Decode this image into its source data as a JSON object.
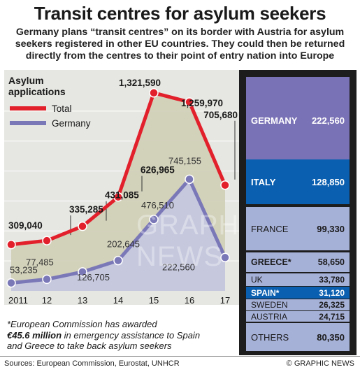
{
  "header": {
    "title": "Transit centres for asylum seekers",
    "subtitle": "Germany plans “transit centres” on its border with Austria for asylum seekers registered in other EU countries. They could then be returned directly from the centres to their point of entry nation into Europe"
  },
  "chart_data": [
    {
      "type": "line",
      "title": "Asylum applications",
      "x": [
        "2011",
        "12",
        "13",
        "14",
        "15",
        "16",
        "17"
      ],
      "series": [
        {
          "name": "Total",
          "values": [
            309040,
            335285,
            431085,
            626965,
            1321590,
            1259970,
            705680
          ],
          "labels": [
            "309,040",
            "335,285",
            "431,085",
            "626,965",
            "1,321,590",
            "1,259,970",
            "705,680"
          ]
        },
        {
          "name": "Germany",
          "values": [
            53235,
            77485,
            126705,
            202645,
            476510,
            745155,
            222560
          ],
          "labels": [
            "53,235",
            "77,485",
            "126,705",
            "202,645",
            "476,510",
            "745,155",
            "222,560"
          ]
        }
      ],
      "ylim": [
        0,
        1400000
      ],
      "colors": {
        "total": "#e2202c",
        "germany": "#7b78b8"
      }
    },
    {
      "type": "bar",
      "categories": [
        "GERMANY",
        "ITALY",
        "FRANCE",
        "GREECE*",
        "UK",
        "SPAIN*",
        "SWEDEN",
        "AUSTRIA",
        "OTHERS"
      ],
      "values": [
        222560,
        128850,
        99330,
        58650,
        33780,
        31120,
        26325,
        24715,
        80350
      ],
      "labels": [
        "222,560",
        "128,850",
        "99,330",
        "58,650",
        "33,780",
        "31,120",
        "26,325",
        "24,715",
        "80,350"
      ],
      "colors": {
        "default": "#a6b1d8",
        "germany": "#7a72b6",
        "highlight": "#0a5fb0"
      }
    }
  ],
  "note": {
    "line1": "*European Commission has awarded",
    "amount": "€45.6 million",
    "line2_rest": " in emergency assistance to Spain",
    "line3": "and Greece to take back asylum seekers"
  },
  "footer": {
    "sources": "Sources: European Commission, Eurostat, UNHCR",
    "credit": "© GRAPHIC NEWS"
  }
}
